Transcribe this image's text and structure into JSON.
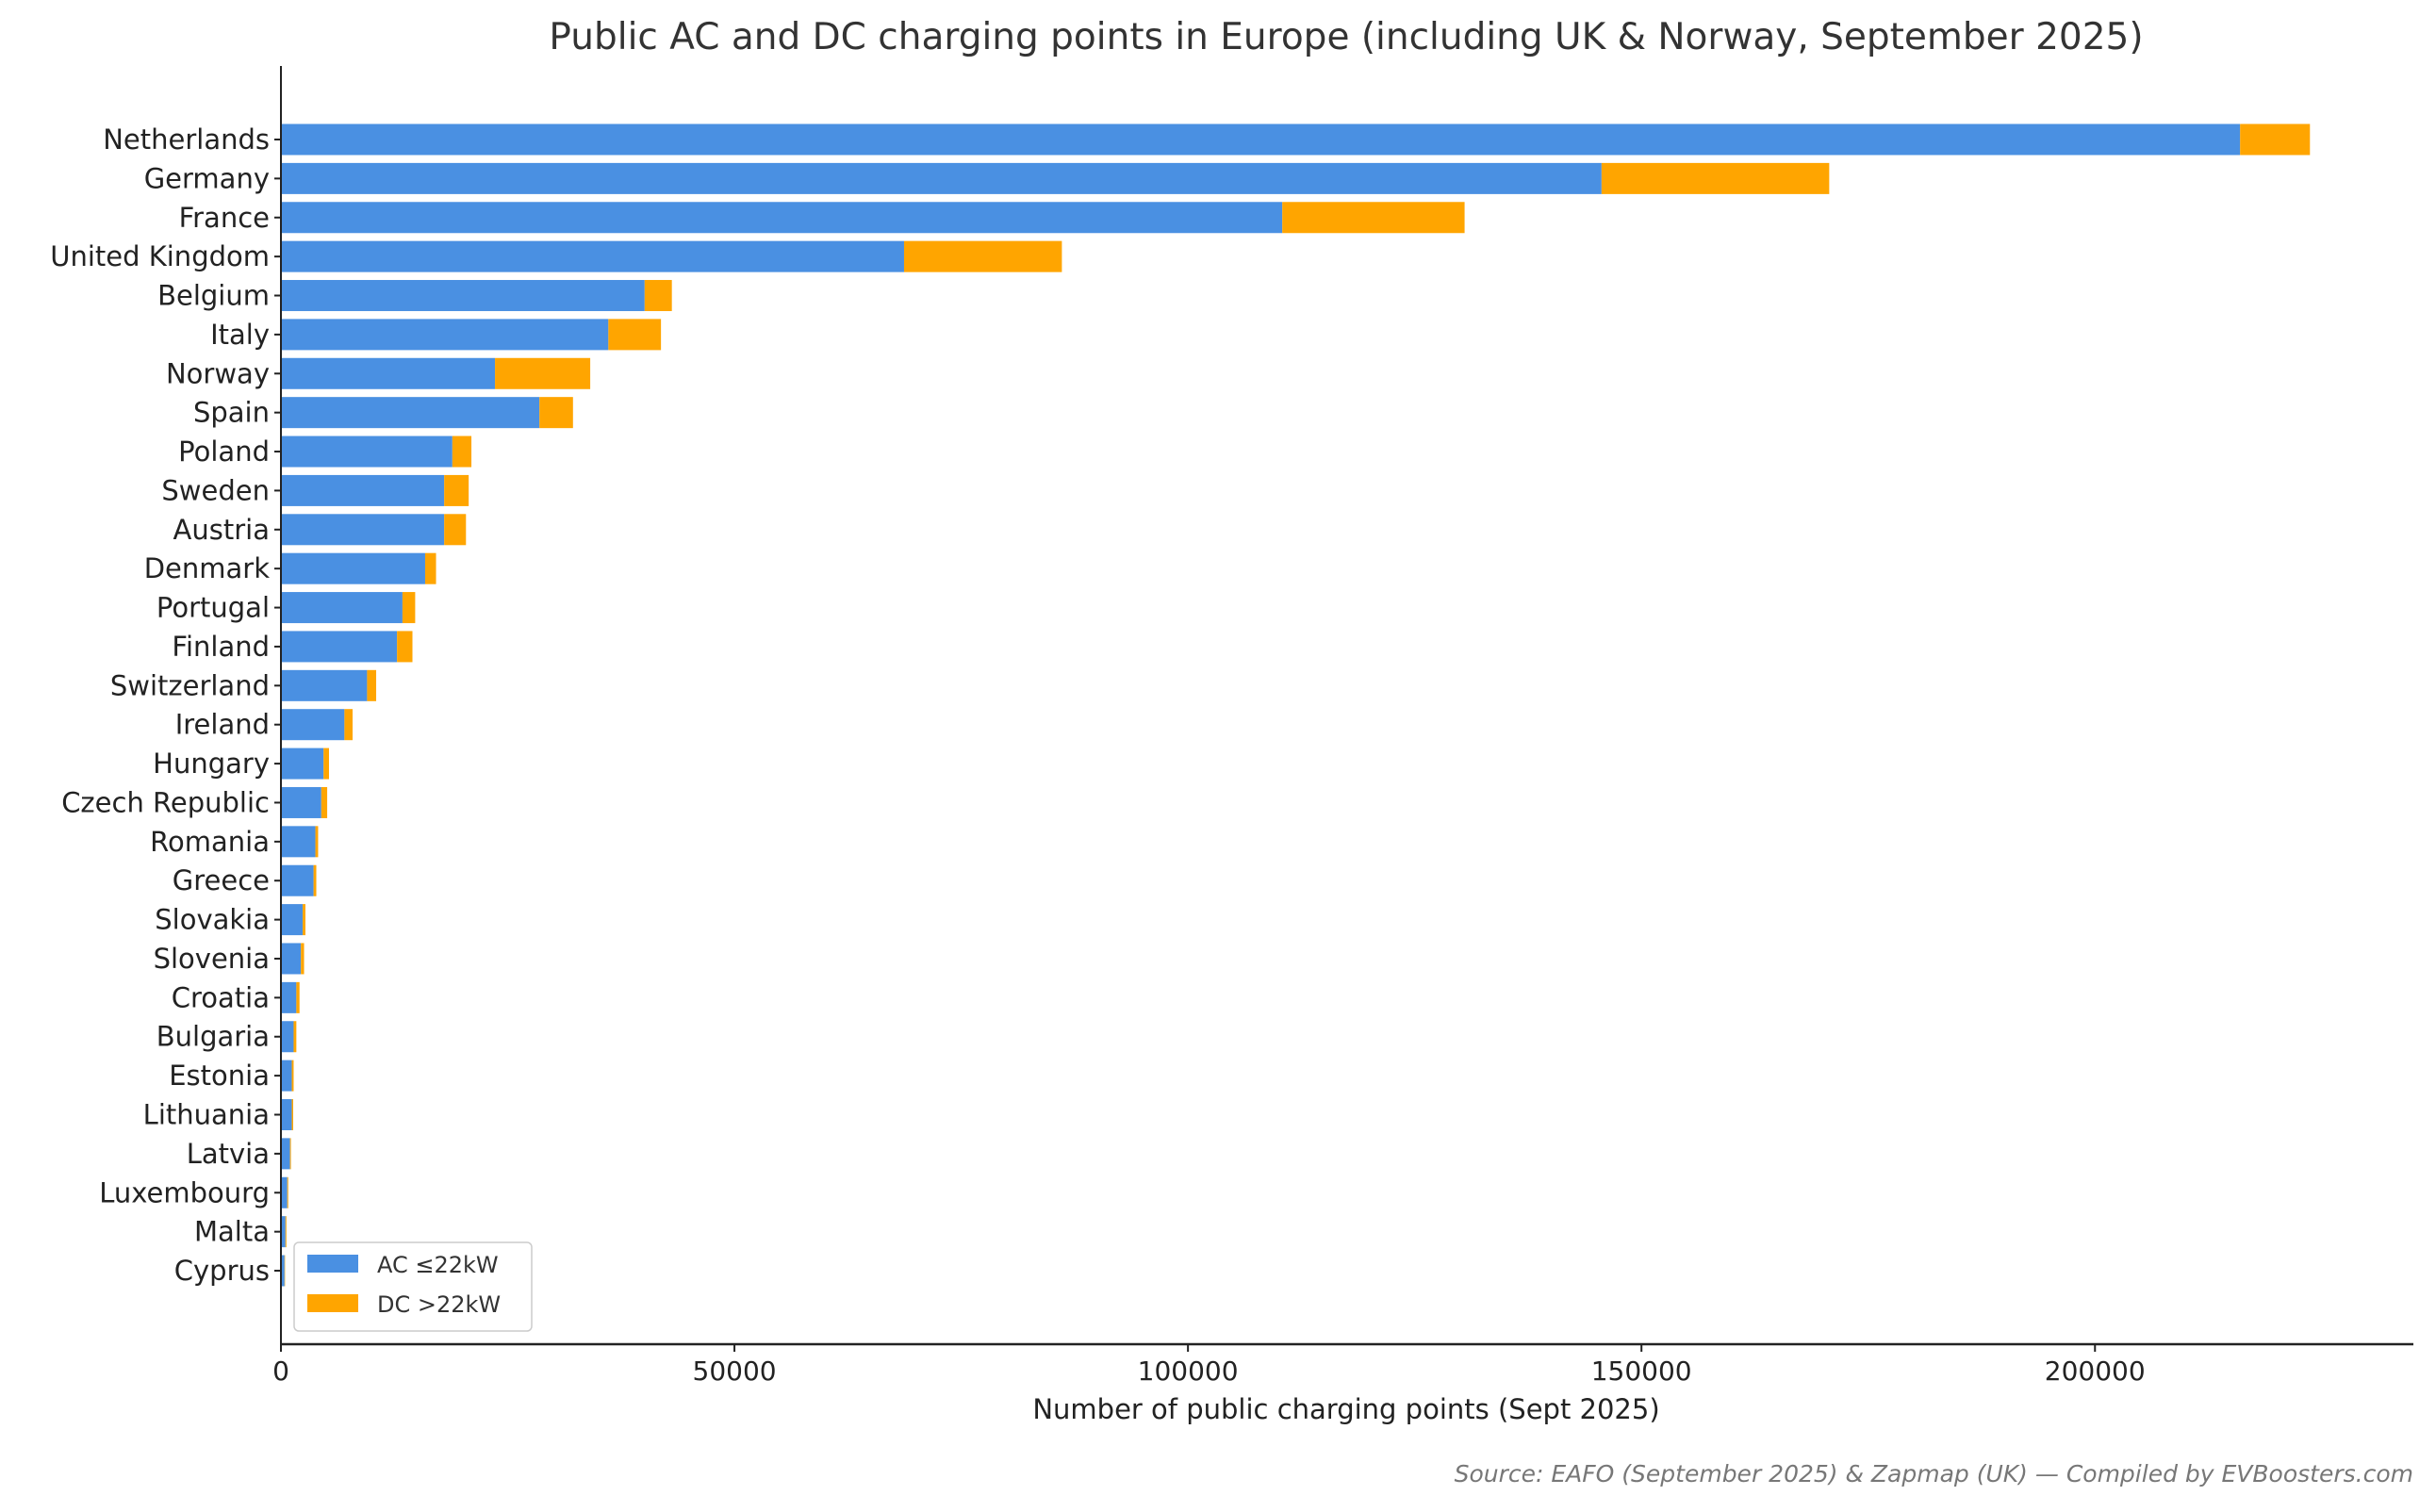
{
  "chart_data": {
    "type": "bar",
    "orientation": "horizontal",
    "stacked": true,
    "title": "Public AC and DC charging points in Europe (including UK & Norway, September 2025)",
    "xlabel": "Number of public charging points (Sept 2025)",
    "ylabel": "",
    "xlim": [
      0,
      235000
    ],
    "xticks": [
      0,
      50000,
      100000,
      150000,
      200000
    ],
    "grid": false,
    "legend_position": "lower-left",
    "source": "Source: EAFO (September 2025) & Zapmap (UK) — Compiled by EVBoosters.com",
    "categories": [
      "Netherlands",
      "Germany",
      "France",
      "United Kingdom",
      "Belgium",
      "Italy",
      "Norway",
      "Spain",
      "Poland",
      "Sweden",
      "Austria",
      "Denmark",
      "Portugal",
      "Finland",
      "Switzerland",
      "Ireland",
      "Hungary",
      "Czech Republic",
      "Romania",
      "Greece",
      "Slovakia",
      "Slovenia",
      "Croatia",
      "Bulgaria",
      "Estonia",
      "Lithuania",
      "Latvia",
      "Luxembourg",
      "Malta",
      "Cyprus"
    ],
    "series": [
      {
        "name": "AC ≤22kW",
        "color": "#4a90e2",
        "values": [
          216000,
          145600,
          110400,
          68700,
          40100,
          36100,
          23600,
          28500,
          18900,
          18000,
          18000,
          15900,
          13400,
          12800,
          9500,
          7000,
          4700,
          4450,
          3800,
          3600,
          2400,
          2200,
          1700,
          1400,
          1200,
          1200,
          1000,
          700,
          500,
          400
        ]
      },
      {
        "name": "DC >22kW",
        "color": "#ffa500",
        "values": [
          7700,
          25100,
          20100,
          17400,
          3000,
          5800,
          10500,
          3700,
          2100,
          2700,
          2400,
          1200,
          1400,
          1700,
          1000,
          900,
          600,
          650,
          300,
          300,
          300,
          350,
          350,
          300,
          200,
          150,
          100,
          100,
          100,
          50
        ]
      }
    ]
  }
}
